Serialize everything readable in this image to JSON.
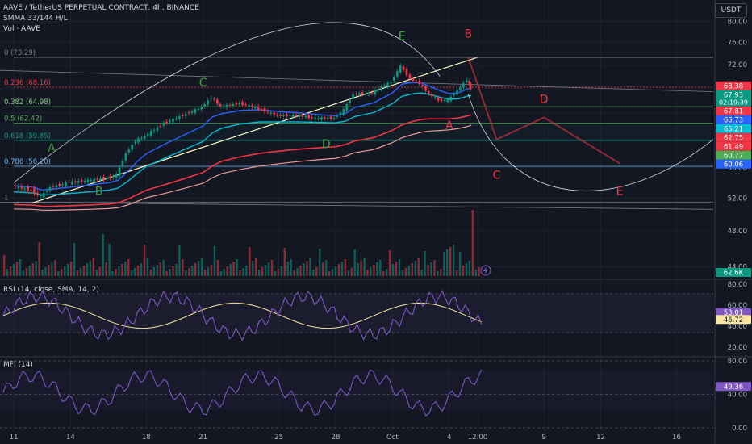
{
  "header": {
    "symbol_line": "AAVE / TetherUS PERPETUAL CONTRACT, 4h, BINANCE",
    "smma_line": "SMMA 33/144 H/L",
    "vol_line": "Vol · AAVE",
    "currency_button": "USDT"
  },
  "chart_data": [
    {
      "type": "candlestick",
      "title": "AAVE / TetherUS PERPETUAL CONTRACT, 4h, BINANCE",
      "y_scale": "log",
      "ylim": [
        43,
        82
      ],
      "y_ticks": [
        "80.00",
        "76.00",
        "72.00",
        "68.00",
        "64.00",
        "60.00",
        "56.00",
        "52.00",
        "48.00",
        "44.00"
      ],
      "x_ticks": [
        "11",
        "14",
        "18",
        "21",
        "25",
        "28",
        "Oct",
        "4",
        "12:00",
        "9",
        "12",
        "16"
      ],
      "x_tick_dates": [
        "2024-09-11",
        "2024-09-14",
        "2024-09-18",
        "2024-09-21",
        "2024-09-25",
        "2024-09-28",
        "2024-10-01",
        "2024-10-04",
        "2024-10-05 12:00",
        "2024-10-09",
        "2024-10-12",
        "2024-10-16"
      ],
      "close_path": [
        [
          "2024-09-11",
          53.6
        ],
        [
          "2024-09-12",
          53.0
        ],
        [
          "2024-09-12 12:00",
          52.2
        ],
        [
          "2024-09-13",
          53.4
        ],
        [
          "2024-09-14",
          54.0
        ],
        [
          "2024-09-15",
          54.3
        ],
        [
          "2024-09-16",
          54.6
        ],
        [
          "2024-09-16 12:00",
          55.0
        ],
        [
          "2024-09-17",
          58.0
        ],
        [
          "2024-09-17 12:00",
          59.8
        ],
        [
          "2024-09-18",
          60.5
        ],
        [
          "2024-09-19",
          62.4
        ],
        [
          "2024-09-20",
          63.6
        ],
        [
          "2024-09-21",
          64.9
        ],
        [
          "2024-09-21 12:00",
          66.5
        ],
        [
          "2024-09-22",
          65.0
        ],
        [
          "2024-09-23",
          65.5
        ],
        [
          "2024-09-24",
          64.7
        ],
        [
          "2024-09-25",
          63.6
        ],
        [
          "2024-09-26",
          63.6
        ],
        [
          "2024-09-27",
          63.2
        ],
        [
          "2024-09-28",
          63.2
        ],
        [
          "2024-09-28 12:00",
          64.5
        ],
        [
          "2024-09-29",
          67.0
        ],
        [
          "2024-09-30",
          67.2
        ],
        [
          "2024-09-30 12:00",
          68.2
        ],
        [
          "2024-10-01",
          69.0
        ],
        [
          "2024-10-01 12:00",
          71.8
        ],
        [
          "2024-10-02",
          69.5
        ],
        [
          "2024-10-02 12:00",
          68.8
        ],
        [
          "2024-10-03",
          67.0
        ],
        [
          "2024-10-03 12:00",
          66.0
        ],
        [
          "2024-10-04",
          66.0
        ],
        [
          "2024-10-04 12:00",
          67.6
        ],
        [
          "2024-10-05",
          69.4
        ],
        [
          "2024-10-05 04:00",
          67.93
        ]
      ],
      "fib_levels": [
        {
          "label": "0 (73.29)",
          "value": 73.29
        },
        {
          "label": "0.236 (68.16)",
          "value": 68.16
        },
        {
          "label": "0.382 (64.98)",
          "value": 64.98
        },
        {
          "label": "0.5 (62.42)",
          "value": 62.42
        },
        {
          "label": "0.618 (59.85)",
          "value": 59.85
        },
        {
          "label": "0.786 (56.20)",
          "value": 56.2
        },
        {
          "label": "1",
          "value": 51.5
        }
      ],
      "pattern_labels": [
        {
          "text": "A",
          "color": "#43a047"
        },
        {
          "text": "B",
          "color": "#43a047"
        },
        {
          "text": "C",
          "color": "#43a047"
        },
        {
          "text": "D",
          "color": "#43a047"
        },
        {
          "text": "E",
          "color": "#43a047"
        },
        {
          "text": "B",
          "color": "#f23645"
        },
        {
          "text": "A",
          "color": "#f23645"
        },
        {
          "text": "C",
          "color": "#f23645"
        },
        {
          "text": "D",
          "color": "#f23645"
        },
        {
          "text": "E",
          "color": "#f23645"
        }
      ],
      "price_tags": [
        {
          "text": "68.38",
          "value": 68.38,
          "color": "#f23645"
        },
        {
          "text": "67.93",
          "value": 67.93,
          "color": "#089981",
          "sub": "02:19:39"
        },
        {
          "text": "67.81",
          "value": 67.81,
          "color": "#f23645"
        },
        {
          "text": "66.73",
          "value": 66.73,
          "color": "#2962ff"
        },
        {
          "text": "65.21",
          "value": 65.21,
          "color": "#00bcd4"
        },
        {
          "text": "62.75",
          "value": 62.75,
          "color": "#f23645"
        },
        {
          "text": "61.49",
          "value": 61.49,
          "color": "#f23645"
        },
        {
          "text": "60.77",
          "value": 60.77,
          "color": "#4caf50"
        },
        {
          "text": "60.06",
          "value": 60.06,
          "color": "#2962ff"
        }
      ]
    },
    {
      "type": "bar",
      "title": "Vol · AAVE",
      "last_value_label": "62.6K"
    },
    {
      "type": "line",
      "title": "RSI (14, close, SMA, 14, 2)",
      "ylim": [
        20,
        80
      ],
      "y_ticks": [
        "80.00",
        "60.00",
        "40.00",
        "20.00"
      ],
      "series": [
        {
          "name": "RSI",
          "color": "#7e57c2",
          "last": "53.01"
        },
        {
          "name": "SMA",
          "color": "#f7e5a0",
          "last": "46.72"
        }
      ]
    },
    {
      "type": "line",
      "title": "MFI (14)",
      "ylim": [
        0,
        80
      ],
      "y_ticks": [
        "80.00",
        "40.00",
        "0.00"
      ],
      "series": [
        {
          "name": "MFI",
          "color": "#7e57c2",
          "last": "49.36"
        }
      ]
    }
  ],
  "colors": {
    "bg": "#131722",
    "up": "#089981",
    "down": "#f23645",
    "grid": "#2a2e39",
    "axis_text": "#b2b5be",
    "green_label": "#43a047",
    "red_label": "#f23645"
  },
  "icons": [
    "lightning-icon"
  ]
}
